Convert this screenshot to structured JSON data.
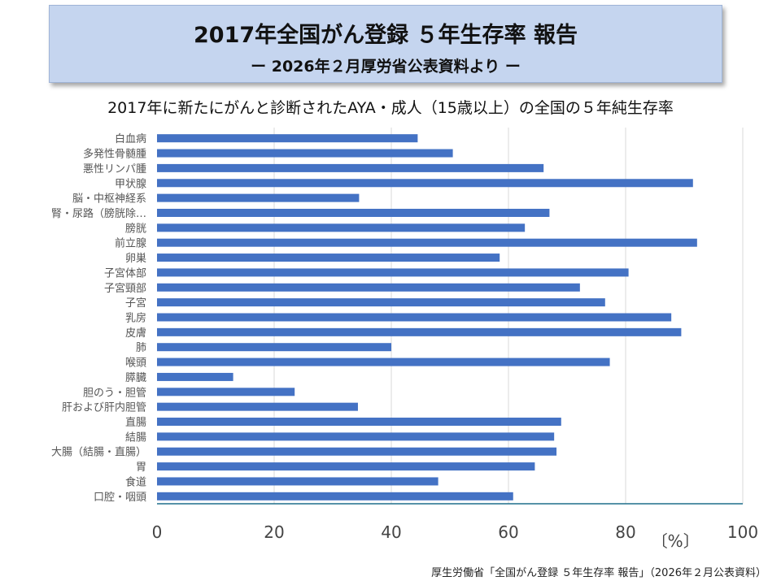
{
  "header": {
    "title": "2017年全国がん登録 ５年生存率 報告",
    "subtitle": "ー 2026年２月厚労省公表資料より ー"
  },
  "chart_heading": "2017年に新たにがんと診断されたAYA・成人（15歳以上）の全国の５年純生存率",
  "source_note": "厚生労働省「全国がん登録 ５年生存率 報告」（2026年２月公表資料）",
  "colors": {
    "bar": "#4472c4",
    "axis": "#1f6f8b",
    "title_bg": "#c5d5ef"
  },
  "chart_data": {
    "type": "bar",
    "orientation": "horizontal",
    "categories": [
      "白血病",
      "多発性骨髄腫",
      "悪性リンパ腫",
      "甲状腺",
      "脳・中枢神経系",
      "腎・尿路（膀胱除…",
      "膀胱",
      "前立腺",
      "卵巣",
      "子宮体部",
      "子宮頸部",
      "子宮",
      "乳房",
      "皮膚",
      "肺",
      "喉頭",
      "膵臓",
      "胆のう・胆管",
      "肝および肝内胆管",
      "直腸",
      "結腸",
      "大腸（結腸・直腸）",
      "胃",
      "食道",
      "口腔・咽頭"
    ],
    "values": [
      44.5,
      50.5,
      66,
      91.5,
      34.5,
      67,
      62.8,
      92.2,
      58.5,
      80.5,
      72.2,
      76.5,
      87.8,
      89.5,
      40,
      77.3,
      13,
      23.5,
      34.3,
      69,
      67.8,
      68.2,
      64.5,
      48,
      60.8
    ],
    "xlim": [
      0,
      100
    ],
    "xticks": [
      0,
      20,
      40,
      60,
      80,
      100
    ],
    "xunit": "〔%〕",
    "grid": true
  }
}
